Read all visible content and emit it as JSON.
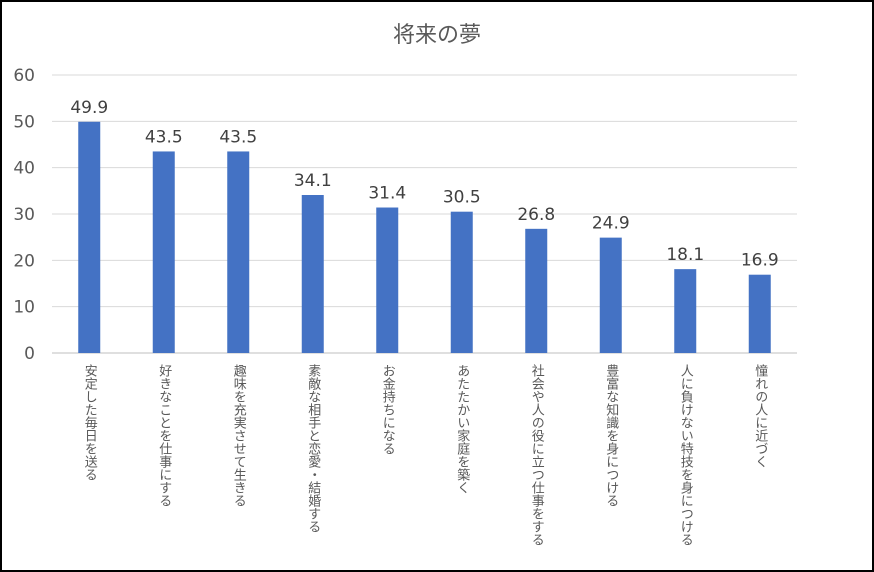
{
  "chart_data": {
    "type": "bar",
    "title": "将来の夢",
    "xlabel": "",
    "ylabel": "",
    "ylim": [
      0,
      60
    ],
    "yticks": [
      0,
      10,
      20,
      30,
      40,
      50,
      60
    ],
    "grid": true,
    "legend": "none",
    "bar_color": "#4472c4",
    "categories": [
      "安定した毎日を送る",
      "好きなことを仕事にする",
      "趣味を充実させて生きる",
      "素敵な相手と恋愛・結婚する",
      "お金持ちになる",
      "あたたかい家庭を築く",
      "社会や人の役に立つ仕事をする",
      "豊富な知識を身につける",
      "人に負けない特技を身につける",
      "憧れの人に近づく"
    ],
    "values": [
      49.9,
      43.5,
      43.5,
      34.1,
      31.4,
      30.5,
      26.8,
      24.9,
      18.1,
      16.9
    ],
    "data_labels": [
      "49.9",
      "43.5",
      "43.5",
      "34.1",
      "31.4",
      "30.5",
      "26.8",
      "24.9",
      "18.1",
      "16.9"
    ]
  }
}
